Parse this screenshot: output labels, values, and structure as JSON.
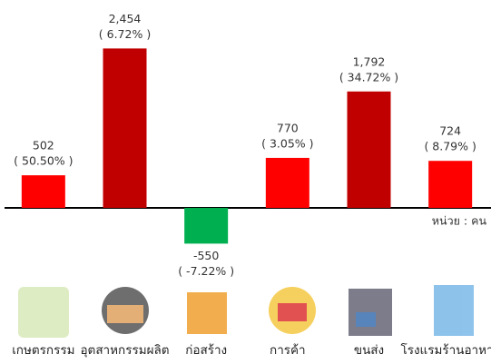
{
  "chart_data": {
    "type": "bar",
    "unit_label": "หน่วย : คน",
    "categories": [
      "เกษตรกรรม",
      "อุตสาหกรรมผลิต",
      "ก่อสร้าง",
      "การค้า",
      "ขนส่ง",
      "โรงแรมร้านอาหาร"
    ],
    "values": [
      502,
      2454,
      -550,
      770,
      1792,
      724
    ],
    "value_labels": [
      "502",
      "2,454",
      "-550",
      "770",
      "1,792",
      "724"
    ],
    "change_labels": [
      "( 50.50% )",
      "( 6.72% )",
      "( -7.22% )",
      "( 3.05% )",
      "( 34.72% )",
      "( 8.79% )"
    ],
    "colors": [
      "#ff0000",
      "#c00000",
      "#00b050",
      "#ff0000",
      "#c00000",
      "#ff0000"
    ],
    "ylim": [
      -1000,
      3200
    ]
  }
}
